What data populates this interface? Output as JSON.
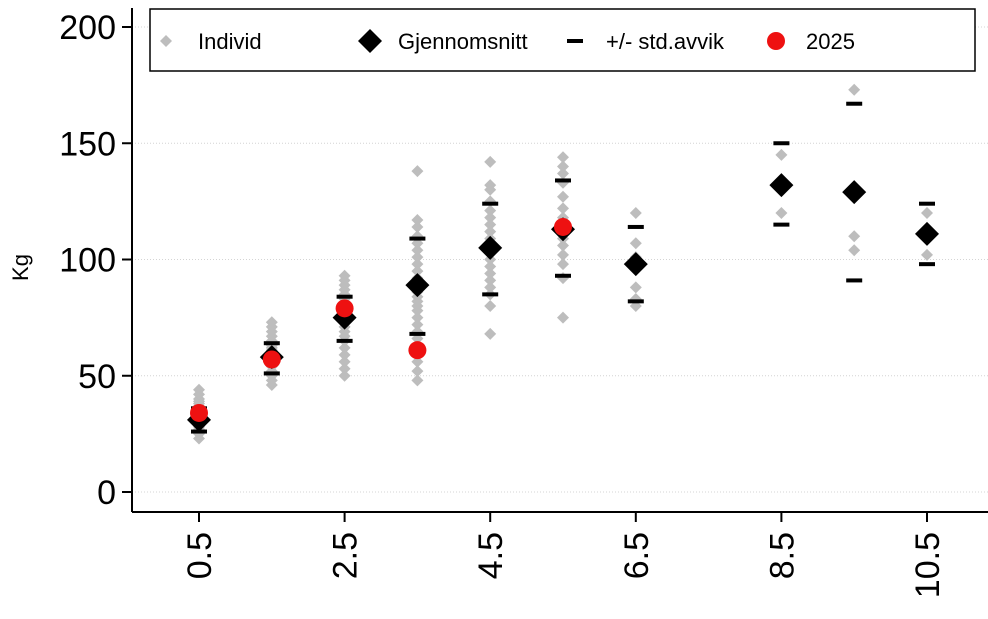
{
  "chart_data": {
    "type": "scatter",
    "title": "",
    "xlabel": "",
    "ylabel": "Kg",
    "xlim": [
      -0.5,
      11.0
    ],
    "ylim": [
      0,
      200
    ],
    "x_ticks": [
      0.5,
      2.5,
      4.5,
      6.5,
      8.5,
      10.5
    ],
    "x_tick_labels": [
      "0.5",
      "2.5",
      "4.5",
      "6.5",
      "8.5",
      "10.5"
    ],
    "y_ticks": [
      0,
      50,
      100,
      150,
      200
    ],
    "y_tick_labels": [
      "0",
      "50",
      "100",
      "150",
      "200"
    ],
    "grid": "horizontal dotted",
    "legend_position": "top",
    "colors": {
      "individual": "#bdbdbd",
      "mean": "#000000",
      "sd": "#000000",
      "current": "#ee1111",
      "grid": "#d4d4d4"
    },
    "legend": [
      {
        "key": "individual",
        "label": "Individ",
        "marker": "diamond-small"
      },
      {
        "key": "mean",
        "label": "Gjennomsnitt",
        "marker": "diamond"
      },
      {
        "key": "sd",
        "label": "+/- std.avvik",
        "marker": "dash"
      },
      {
        "key": "current",
        "label": "2025",
        "marker": "circle"
      }
    ],
    "individual_points": [
      {
        "x": 0.5,
        "y": [
          23,
          25,
          27,
          28,
          29,
          30,
          31,
          32,
          33,
          34,
          35,
          36,
          37,
          38,
          39,
          40,
          42,
          44
        ]
      },
      {
        "x": 1.5,
        "y": [
          46,
          48,
          50,
          52,
          54,
          55,
          56,
          57,
          58,
          59,
          60,
          61,
          62,
          63,
          64,
          65,
          67,
          69,
          71,
          73
        ]
      },
      {
        "x": 2.5,
        "y": [
          50,
          53,
          56,
          59,
          62,
          65,
          67,
          69,
          71,
          73,
          75,
          77,
          79,
          80,
          81,
          83,
          85,
          87,
          89,
          91,
          93
        ]
      },
      {
        "x": 3.5,
        "y": [
          48,
          52,
          56,
          60,
          63,
          66,
          69,
          72,
          75,
          78,
          80,
          82,
          84,
          86,
          88,
          90,
          92,
          95,
          98,
          101,
          104,
          107,
          110,
          114,
          117,
          138
        ]
      },
      {
        "x": 4.5,
        "y": [
          68,
          80,
          85,
          88,
          91,
          94,
          97,
          100,
          103,
          106,
          109,
          112,
          115,
          118,
          121,
          125,
          130,
          132,
          142
        ]
      },
      {
        "x": 5.5,
        "y": [
          75,
          92,
          98,
          102,
          106,
          109,
          112,
          115,
          118,
          122,
          127,
          133,
          137,
          140,
          144
        ]
      },
      {
        "x": 6.5,
        "y": [
          80,
          83,
          88,
          101,
          107,
          120
        ]
      },
      {
        "x": 8.5,
        "y": [
          120,
          145
        ]
      },
      {
        "x": 9.5,
        "y": [
          104,
          110,
          173
        ]
      },
      {
        "x": 10.5,
        "y": [
          102,
          120
        ]
      }
    ],
    "means": [
      {
        "x": 0.5,
        "y": 31
      },
      {
        "x": 1.5,
        "y": 58
      },
      {
        "x": 2.5,
        "y": 75
      },
      {
        "x": 3.5,
        "y": 89
      },
      {
        "x": 4.5,
        "y": 105
      },
      {
        "x": 5.5,
        "y": 113
      },
      {
        "x": 6.5,
        "y": 98
      },
      {
        "x": 8.5,
        "y": 132
      },
      {
        "x": 9.5,
        "y": 129
      },
      {
        "x": 10.5,
        "y": 111
      }
    ],
    "sd_bounds": [
      {
        "x": 0.5,
        "lower": 26,
        "upper": 36
      },
      {
        "x": 1.5,
        "lower": 51,
        "upper": 64
      },
      {
        "x": 2.5,
        "lower": 65,
        "upper": 84
      },
      {
        "x": 3.5,
        "lower": 68,
        "upper": 109
      },
      {
        "x": 4.5,
        "lower": 85,
        "upper": 124
      },
      {
        "x": 5.5,
        "lower": 93,
        "upper": 134
      },
      {
        "x": 6.5,
        "lower": 82,
        "upper": 114
      },
      {
        "x": 8.5,
        "lower": 115,
        "upper": 150
      },
      {
        "x": 9.5,
        "lower": 91,
        "upper": 167
      },
      {
        "x": 10.5,
        "lower": 98,
        "upper": 124
      }
    ],
    "current_year_points": [
      {
        "x": 0.5,
        "y": 34
      },
      {
        "x": 1.5,
        "y": 57
      },
      {
        "x": 2.5,
        "y": 79
      },
      {
        "x": 3.5,
        "y": 61
      },
      {
        "x": 5.5,
        "y": 114
      }
    ]
  }
}
